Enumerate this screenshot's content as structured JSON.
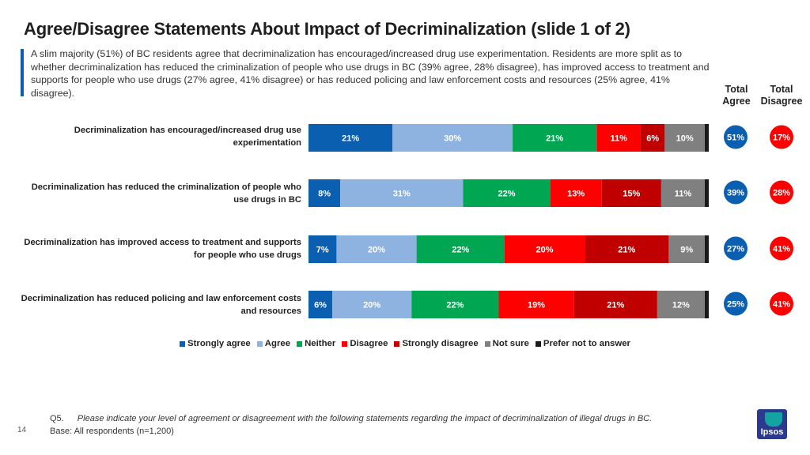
{
  "page": {
    "title": "Agree/Disagree Statements About Impact of Decriminalization (slide 1 of 2)",
    "subtitle": "A slim majority (51%) of BC residents agree that decriminalization has encouraged/increased drug use experimentation. Residents are more split as to whether decriminalization has reduced the criminalization of people who use drugs in BC (39% agree, 28% disagree), has improved access to treatment and supports for people who use drugs (27% agree, 41% disagree) or has reduced policing and law enforcement costs and resources (25% agree, 41% disagree).",
    "total_agree_header": "Total\nAgree",
    "total_disagree_header": "Total\nDisagree",
    "footnote_q_num": "Q5.",
    "footnote_question": "Please indicate your level of agreement or disagreement with the following statements regarding the impact of decriminalization of illegal drugs in BC.",
    "footnote_base": "Base: All respondents (n=1,200)",
    "page_number": "14",
    "logo_text": "Ipsos"
  },
  "chart_data": {
    "type": "bar",
    "orientation": "horizontal",
    "stacked": true,
    "percent": true,
    "categories": [
      "Decriminalization has encouraged/increased drug use experimentation",
      "Decriminalization has reduced the criminalization of people who use drugs in BC",
      "Decriminalization has improved access to treatment and supports for people who use drugs",
      "Decriminalization has reduced policing and law enforcement costs and resources"
    ],
    "category_lines": [
      [
        "Decriminalization has encouraged/increased drug use",
        "experimentation"
      ],
      [
        "Decriminalization has reduced the criminalization of people who",
        "use drugs in BC"
      ],
      [
        "Decriminalization has improved access to treatment and supports",
        "for people who use drugs"
      ],
      [
        "Decriminalization has reduced policing and law enforcement costs",
        "and resources"
      ]
    ],
    "series": [
      {
        "name": "Strongly agree",
        "color": "#0b5fb0",
        "values": [
          21,
          8,
          7,
          6
        ]
      },
      {
        "name": "Agree",
        "color": "#8fb3e0",
        "values": [
          30,
          31,
          20,
          20
        ]
      },
      {
        "name": "Neither",
        "color": "#00a651",
        "values": [
          21,
          22,
          22,
          22
        ]
      },
      {
        "name": "Disagree",
        "color": "#ff0000",
        "values": [
          11,
          13,
          20,
          19
        ]
      },
      {
        "name": "Strongly disagree",
        "color": "#c00000",
        "values": [
          6,
          15,
          21,
          21
        ]
      },
      {
        "name": "Not sure",
        "color": "#808080",
        "values": [
          10,
          11,
          9,
          12
        ]
      },
      {
        "name": "Prefer not to answer",
        "color": "#1a1a1a",
        "values": [
          1,
          1,
          1,
          1
        ]
      }
    ],
    "data_labels": [
      [
        "21%",
        "30%",
        "21%",
        "11%",
        "6%",
        "10%",
        ""
      ],
      [
        "8%",
        "31%",
        "22%",
        "13%",
        "15%",
        "11%",
        ""
      ],
      [
        "7%",
        "20%",
        "22%",
        "20%",
        "21%",
        "9%",
        ""
      ],
      [
        "6%",
        "20%",
        "22%",
        "19%",
        "21%",
        "12%",
        ""
      ]
    ],
    "total_agree": [
      "51%",
      "39%",
      "27%",
      "25%"
    ],
    "total_disagree": [
      "17%",
      "28%",
      "41%",
      "41%"
    ],
    "legend": [
      "Strongly agree",
      "Agree",
      "Neither",
      "Disagree",
      "Strongly disagree",
      "Not sure",
      "Prefer not to answer"
    ],
    "legend_position": "bottom"
  }
}
